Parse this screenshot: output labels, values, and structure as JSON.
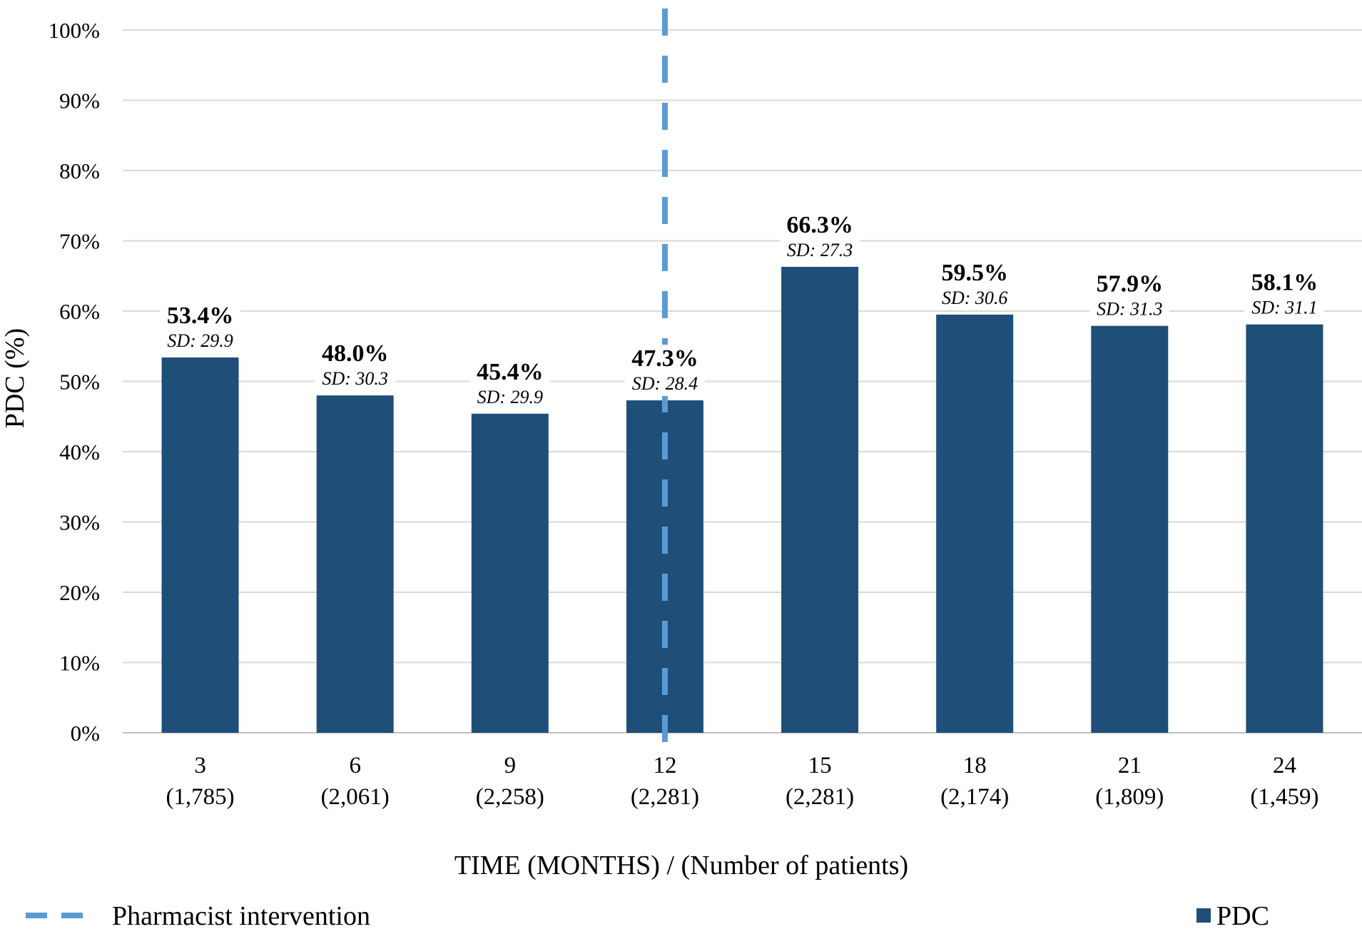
{
  "chart_data": {
    "type": "bar",
    "categories": [
      "3",
      "6",
      "9",
      "12",
      "15",
      "18",
      "21",
      "24"
    ],
    "patient_counts": [
      "(1,785)",
      "(2,061)",
      "(2,258)",
      "(2,281)",
      "(2,281)",
      "(2,174)",
      "(1,809)",
      "(1,459)"
    ],
    "series": [
      {
        "name": "PDC",
        "values": [
          53.4,
          48.0,
          45.4,
          47.3,
          66.3,
          59.5,
          57.9,
          58.1
        ],
        "value_labels": [
          "53.4%",
          "48.0%",
          "45.4%",
          "47.3%",
          "66.3%",
          "59.5%",
          "57.9%",
          "58.1%"
        ],
        "sd_labels": [
          "SD: 29.9",
          "SD: 30.3",
          "SD: 29.9",
          "SD: 28.4",
          "SD: 27.3",
          "SD: 30.6",
          "SD: 31.3",
          "SD: 31.1"
        ],
        "color": "#1f4e79"
      }
    ],
    "xlabel": "TIME (MONTHS) / (Number of patients)",
    "ylabel": "PDC (%)",
    "ylim": [
      0,
      100
    ],
    "yticks": [
      0,
      10,
      20,
      30,
      40,
      50,
      60,
      70,
      80,
      90,
      100
    ],
    "ytick_labels": [
      "0%",
      "10%",
      "20%",
      "30%",
      "40%",
      "50%",
      "60%",
      "70%",
      "80%",
      "90%",
      "100%"
    ],
    "grid": true,
    "intervention": {
      "label": "Pharmacist intervention",
      "at_category": "12",
      "color": "#5b9bd5",
      "style": "dashed"
    },
    "legend": {
      "position": "bottom",
      "series_label": "PDC"
    }
  }
}
